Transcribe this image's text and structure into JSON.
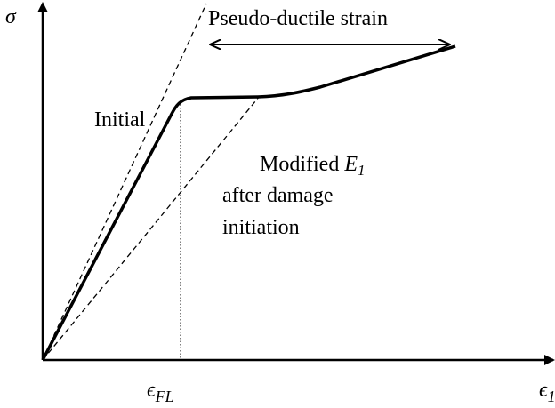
{
  "axes": {
    "y_label": "σ",
    "x_mark": {
      "symbol": "ϵ",
      "subscript": "FL"
    },
    "x_label": {
      "symbol": "ϵ",
      "subscript": "1"
    }
  },
  "labels": {
    "pseudo_ductile": "Pseudo-ductile strain",
    "initial": "Initial",
    "modified": {
      "text": "Modified",
      "symbol": "E",
      "subscript": "1"
    },
    "after": [
      "after damage",
      "initiation"
    ]
  }
}
